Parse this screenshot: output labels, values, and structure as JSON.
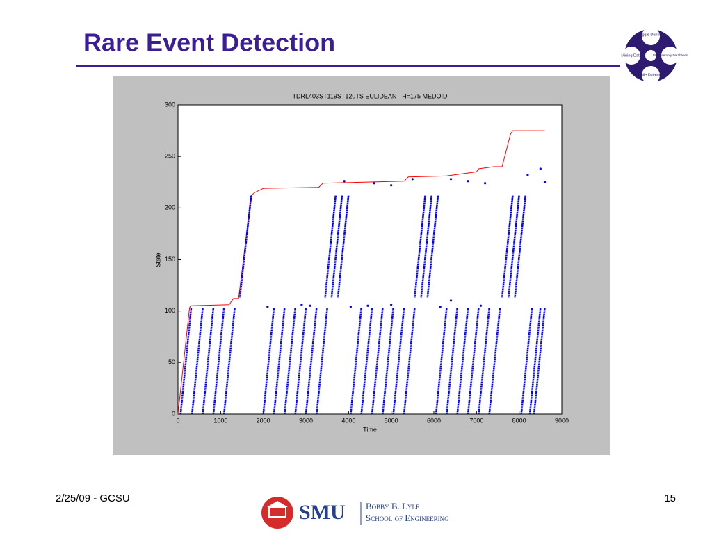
{
  "slide": {
    "title": "Rare Event Detection",
    "footer_left": "2/25/09 - GCSU",
    "page_number": "15",
    "logo_top": {
      "top": "Maggie Dunham",
      "left": "Mining Data",
      "right": "Main Memory Databases",
      "bottom": "Mobile Databases"
    },
    "logo_bottom": {
      "name": "SMU",
      "line1": "Bobby B. Lyle",
      "line2": "School of Engineering"
    }
  },
  "chart_data": {
    "type": "scatter",
    "title": "TDRL403ST119ST120TS EULIDEAN TH=175 MEDOID",
    "x_label": "Time",
    "y_label": "State",
    "xlim": [
      0,
      9000
    ],
    "ylim": [
      0,
      300
    ],
    "xticks": [
      0,
      1000,
      2000,
      3000,
      4000,
      5000,
      6000,
      7000,
      8000,
      9000
    ],
    "yticks": [
      0,
      50,
      100,
      150,
      200,
      250,
      300
    ],
    "grid": false,
    "series": [
      {
        "color": "#ff0000",
        "x": [
          0,
          270,
          300,
          1200,
          1300,
          1420,
          1720,
          1800,
          2000,
          3300,
          3400,
          5300,
          5400,
          6300,
          7000,
          7050,
          7400,
          7600,
          7800,
          7850,
          8600
        ],
        "values": [
          0,
          103,
          105,
          106,
          112,
          112,
          212,
          215,
          219,
          220,
          224,
          226,
          230,
          231,
          235,
          238,
          240,
          240,
          272,
          275,
          275
        ]
      },
      {
        "color": "#0000ff",
        "x": [
          60,
          310,
          null,
          330,
          580,
          null,
          580,
          830,
          null,
          830,
          1080,
          null,
          1080,
          1330,
          null,
          2000,
          2250,
          null,
          2250,
          2500,
          null,
          2500,
          2750,
          null,
          2750,
          3000,
          null,
          3000,
          3250,
          null,
          3250,
          3500,
          null,
          4050,
          4300,
          null,
          4300,
          4550,
          null,
          4550,
          4800,
          null,
          4800,
          5050,
          null,
          5050,
          5300,
          null,
          5300,
          5550,
          null,
          6050,
          6300,
          null,
          6300,
          6550,
          null,
          6550,
          6800,
          null,
          6800,
          7050,
          null,
          7050,
          7300,
          null,
          7300,
          7550,
          null,
          8050,
          8300,
          null,
          8250,
          8500,
          null,
          8350,
          8600,
          null,
          1450,
          1720,
          null,
          3450,
          3700,
          null,
          3600,
          3850,
          null,
          3750,
          4000,
          null,
          5550,
          5800,
          null,
          5700,
          5950,
          null,
          5850,
          6100,
          null,
          7600,
          7850,
          null,
          7750,
          8000,
          null,
          7900,
          8150
        ],
        "values": [
          0,
          103,
          null,
          0,
          103,
          null,
          0,
          103,
          null,
          0,
          103,
          null,
          0,
          103,
          null,
          0,
          103,
          null,
          0,
          103,
          null,
          0,
          103,
          null,
          0,
          103,
          null,
          0,
          103,
          null,
          0,
          103,
          null,
          0,
          103,
          null,
          0,
          103,
          null,
          0,
          103,
          null,
          0,
          103,
          null,
          0,
          103,
          null,
          0,
          103,
          null,
          0,
          103,
          null,
          0,
          103,
          null,
          0,
          103,
          null,
          0,
          103,
          null,
          0,
          103,
          null,
          0,
          103,
          null,
          0,
          103,
          null,
          0,
          103,
          null,
          0,
          103,
          null,
          113,
          213,
          null,
          113,
          213,
          null,
          113,
          213,
          null,
          113,
          213,
          null,
          113,
          213,
          null,
          113,
          213,
          null,
          113,
          213,
          null,
          113,
          213,
          null,
          113,
          213,
          null,
          113,
          213
        ]
      },
      {
        "color": "#0000ff",
        "x": [
          3900,
          null,
          4600,
          null,
          5000,
          null,
          5500,
          null,
          6400,
          null,
          6800,
          null,
          7200,
          null,
          8200,
          null,
          8500,
          null,
          8600,
          null,
          2100,
          null,
          2900,
          null,
          3100,
          null,
          4050,
          null,
          4450,
          null,
          5000,
          null,
          6150,
          null,
          6400,
          null,
          7100
        ],
        "values": [
          226,
          null,
          224,
          null,
          222,
          null,
          228,
          null,
          228,
          null,
          226,
          null,
          224,
          null,
          232,
          null,
          238,
          null,
          225,
          null,
          104,
          null,
          106,
          null,
          105,
          null,
          104,
          null,
          105,
          null,
          106,
          null,
          104,
          null,
          110,
          null,
          105
        ]
      }
    ]
  }
}
